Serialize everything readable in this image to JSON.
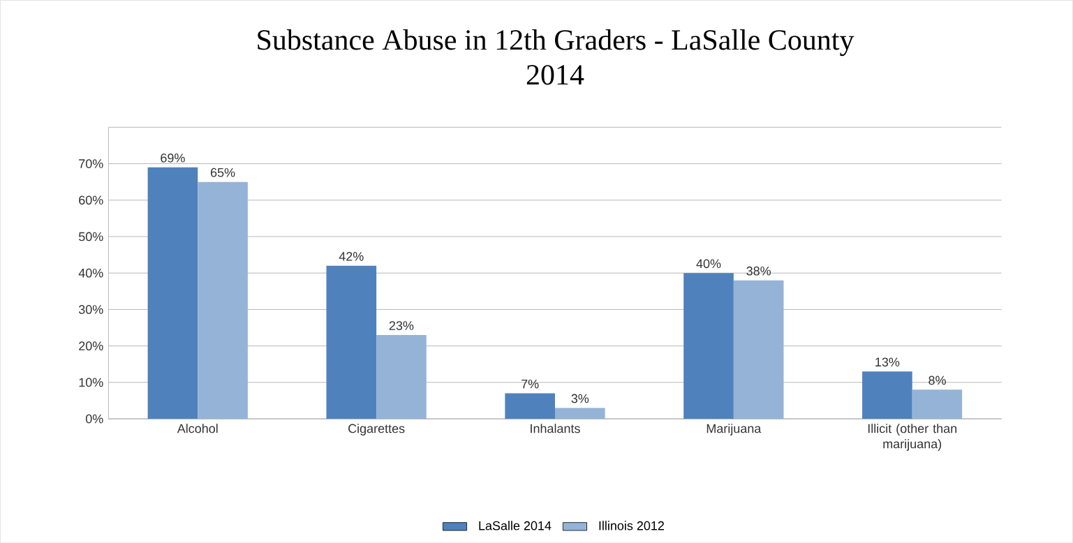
{
  "chart_data": {
    "type": "bar",
    "title": "Substance Abuse in 12th Graders - LaSalle County",
    "subtitle": "2014",
    "categories": [
      "Alcohol",
      "Cigarettes",
      "Inhalants",
      "Marijuana",
      "Illicit (other than marijuana)"
    ],
    "series": [
      {
        "name": "LaSalle 2014",
        "color": "#4f81bd",
        "values": [
          69,
          42,
          7,
          40,
          13
        ],
        "value_labels": [
          "69%",
          "42%",
          "7%",
          "40%",
          "13%"
        ]
      },
      {
        "name": "Illinois 2012",
        "color": "#95b3d7",
        "values": [
          65,
          23,
          3,
          38,
          8
        ],
        "value_labels": [
          "65%",
          "23%",
          "3%",
          "38%",
          "8%"
        ]
      }
    ],
    "ylim": [
      0,
      80
    ],
    "yticks": [
      {
        "value": 0,
        "label": "0%"
      },
      {
        "value": 10,
        "label": "10%"
      },
      {
        "value": 20,
        "label": "20%"
      },
      {
        "value": 30,
        "label": "30%"
      },
      {
        "value": 40,
        "label": "40%"
      },
      {
        "value": 50,
        "label": "50%"
      },
      {
        "value": 60,
        "label": "60%"
      },
      {
        "value": 70,
        "label": "70%"
      },
      {
        "value": 80,
        "label": null
      }
    ],
    "grid": "y",
    "legend": "bottom"
  }
}
